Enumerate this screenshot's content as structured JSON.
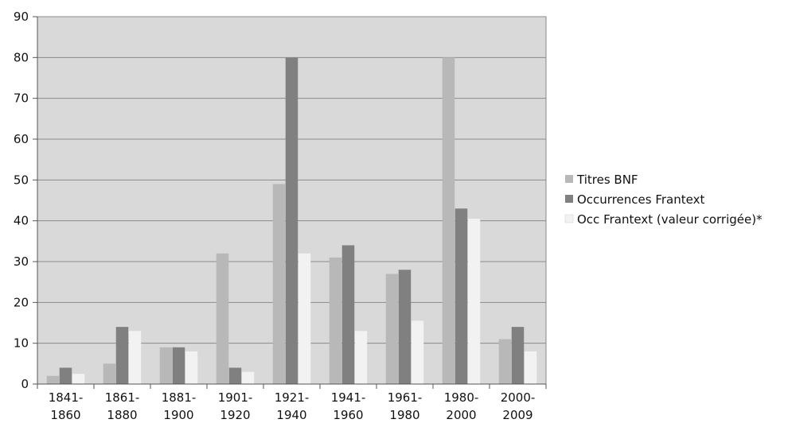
{
  "chart_data": {
    "type": "bar",
    "categories": [
      [
        "1841-",
        "1860"
      ],
      [
        "1861-",
        "1880"
      ],
      [
        "1881-",
        "1900"
      ],
      [
        "1901-",
        "1920"
      ],
      [
        "1921-",
        "1940"
      ],
      [
        "1941-",
        "1960"
      ],
      [
        "1961-",
        "1980"
      ],
      [
        "1980-",
        "2000"
      ],
      [
        "2000-",
        "2009"
      ]
    ],
    "series": [
      {
        "name": "Titres BNF",
        "color": "#b8b8b8",
        "values": [
          2,
          5,
          9,
          32,
          49,
          31,
          27,
          80,
          11
        ]
      },
      {
        "name": "Occurrences Frantext",
        "color": "#808080",
        "values": [
          4,
          14,
          9,
          4,
          80,
          34,
          28,
          43,
          14
        ]
      },
      {
        "name": "Occ Frantext (valeur corrigée)*",
        "color": "#f2f2f2",
        "values": [
          2.5,
          13,
          8,
          3,
          32,
          13,
          15.5,
          40.5,
          8
        ]
      }
    ],
    "ylim": [
      0,
      90
    ],
    "yticks": [
      0,
      10,
      20,
      30,
      40,
      50,
      60,
      70,
      80,
      90
    ],
    "grid": true,
    "legend_position": "right",
    "title": "",
    "xlabel": "",
    "ylabel": "",
    "plot_background": "#d9d9d9"
  }
}
